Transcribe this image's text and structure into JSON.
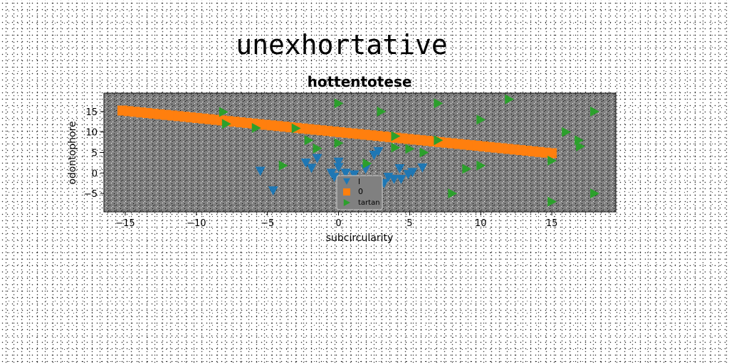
{
  "chart_data": {
    "type": "scatter",
    "suptitle": "unexhortative",
    "title": "hottentotese",
    "xlabel": "subcircularity",
    "ylabel": "odontophore",
    "xlim": [
      -16.5,
      19.5
    ],
    "ylim": [
      -9.5,
      19.5
    ],
    "xticks": [
      -15,
      -10,
      -5,
      0,
      5,
      10,
      15
    ],
    "yticks": [
      -5,
      0,
      5,
      10,
      15
    ],
    "xtick_labels": [
      "−15",
      "−10",
      "−5",
      "0",
      "5",
      "10",
      "15"
    ],
    "ytick_labels": [
      "−5",
      "0",
      "5",
      "10",
      "15"
    ],
    "grid": false,
    "legend_position": "bottom-center",
    "plot_background": "#808080",
    "series": [
      {
        "name": "l",
        "marker": "triangle-down",
        "color": "#1f77b4",
        "points": [
          [
            -5.5,
            0.5
          ],
          [
            -4.6,
            -4.3
          ],
          [
            -2.3,
            2.5
          ],
          [
            -1.9,
            1.2
          ],
          [
            -1.5,
            3.6
          ],
          [
            -0.5,
            0.0
          ],
          [
            -0.3,
            -1.0
          ],
          [
            0.0,
            2.7
          ],
          [
            0.0,
            1.4
          ],
          [
            0.5,
            0.0
          ],
          [
            0.8,
            -1.7
          ],
          [
            1.1,
            -0.4
          ],
          [
            1.9,
            1.0
          ],
          [
            2.5,
            4.4
          ],
          [
            2.8,
            5.3
          ],
          [
            3.5,
            -1.0
          ],
          [
            3.9,
            -1.5
          ],
          [
            4.3,
            1.1
          ],
          [
            4.4,
            -1.5
          ],
          [
            4.9,
            -0.3
          ],
          [
            5.9,
            1.3
          ],
          [
            5.2,
            0.2
          ],
          [
            3.2,
            -2.5
          ],
          [
            0.2,
            -2.8
          ]
        ]
      },
      {
        "name": "0",
        "marker": "square",
        "color": "#ff7f0e",
        "line": {
          "x_start": -15.2,
          "x_end": 15.0,
          "slope": -0.345,
          "intercept": 10.0
        }
      },
      {
        "name": "tartan",
        "marker": "triangle-right",
        "color": "#2ca02c",
        "points": [
          [
            -8.1,
            14.9
          ],
          [
            -7.9,
            12.0
          ],
          [
            -5.8,
            11.0
          ],
          [
            -3.0,
            10.9
          ],
          [
            -2.1,
            8.0
          ],
          [
            -1.5,
            6.0
          ],
          [
            0.0,
            17.0
          ],
          [
            0.0,
            7.3
          ],
          [
            2.0,
            2.3
          ],
          [
            3.0,
            15.0
          ],
          [
            4.0,
            9.0
          ],
          [
            4.0,
            6.2
          ],
          [
            5.0,
            5.9
          ],
          [
            6.0,
            5.0
          ],
          [
            7.0,
            17.0
          ],
          [
            7.0,
            8.0
          ],
          [
            8.0,
            -5.0
          ],
          [
            9.0,
            1.0
          ],
          [
            10.0,
            1.8
          ],
          [
            10.0,
            13.0
          ],
          [
            12.0,
            18.0
          ],
          [
            15.0,
            3.0
          ],
          [
            15.0,
            -7.0
          ],
          [
            16.0,
            10.0
          ],
          [
            16.9,
            8.0
          ],
          [
            17.0,
            6.5
          ],
          [
            18.0,
            15.0
          ],
          [
            18.0,
            -5.0
          ],
          [
            -3.9,
            1.8
          ]
        ]
      }
    ]
  }
}
